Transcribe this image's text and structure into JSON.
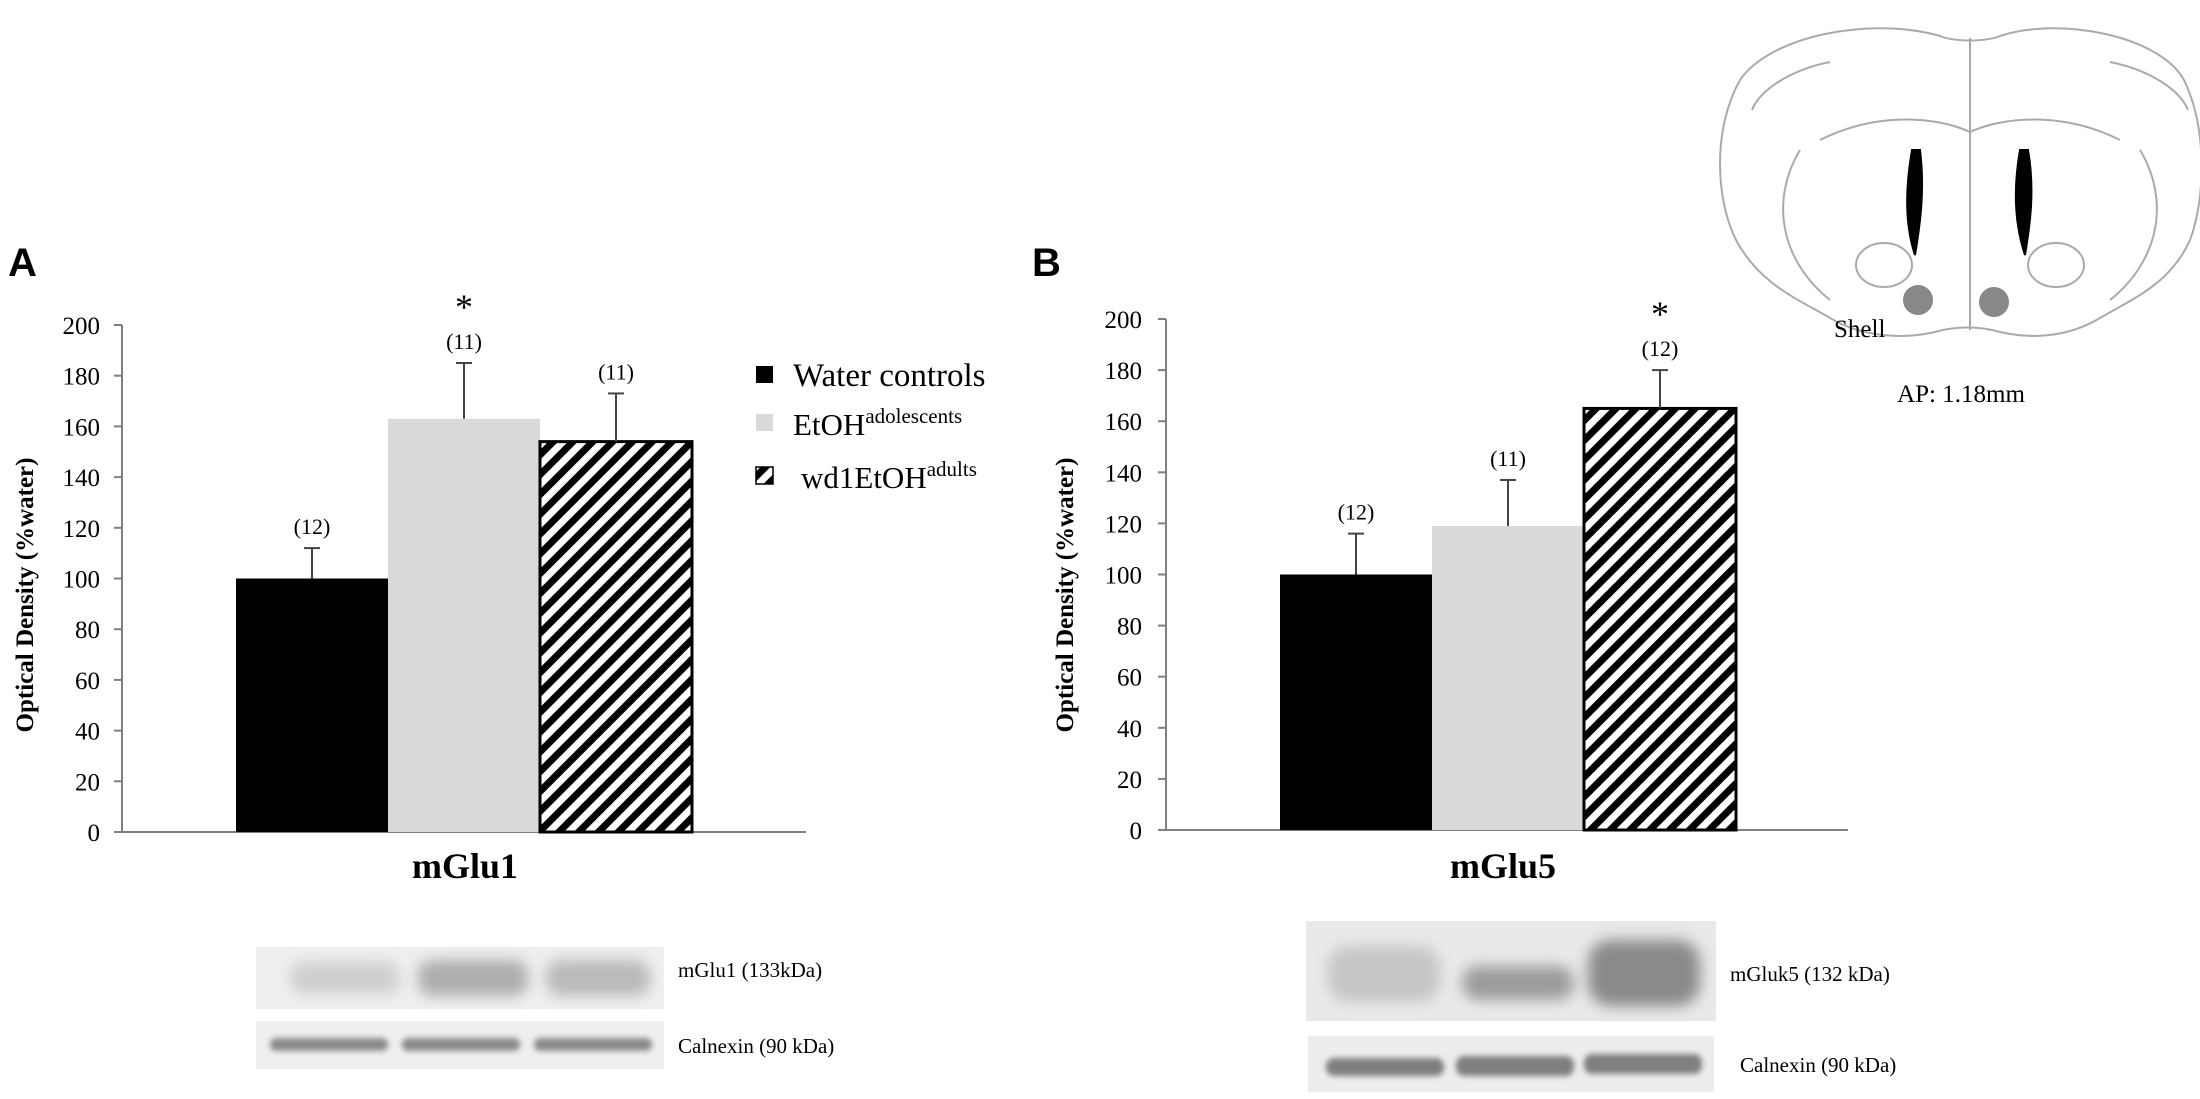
{
  "colors": {
    "water": "#000000",
    "etoh_adolescents": "#d9d9d9",
    "wd1etoh_adults": "hatched"
  },
  "legend": {
    "items": [
      {
        "name": "Water controls",
        "base": "Water controls",
        "sup": ""
      },
      {
        "name": "EtOHadolescents",
        "base": "EtOH",
        "sup": "adolescents"
      },
      {
        "name": "wd1EtOHadults",
        "base": "wd1EtOH",
        "sup": "adults"
      }
    ]
  },
  "chart_data": [
    {
      "type": "bar",
      "panel": "A",
      "xlabel": "mGlu1",
      "ylabel": "Optical Density (%water)",
      "ylim": [
        0,
        200
      ],
      "yticks": [
        "0",
        "20",
        "40",
        "60",
        "80",
        "100",
        "120",
        "140",
        "160",
        "180",
        "200"
      ],
      "series": [
        {
          "name": "Water controls",
          "value": 100,
          "error": 12,
          "n_label": "(12)",
          "sig": ""
        },
        {
          "name": "EtOHadolescents",
          "value": 163,
          "error": 22,
          "n_label": "(11)",
          "sig": "*"
        },
        {
          "name": "wd1EtOHadults",
          "value": 154,
          "error": 19,
          "n_label": "(11)",
          "sig": ""
        }
      ],
      "blot": {
        "labels": [
          "mGlu1 (133kDa)",
          "Calnexin (90 kDa)"
        ]
      }
    },
    {
      "type": "bar",
      "panel": "B",
      "xlabel": "mGlu5",
      "ylabel": "Optical Density (%water)",
      "ylim": [
        0,
        200
      ],
      "yticks": [
        "0",
        "20",
        "40",
        "60",
        "80",
        "100",
        "120",
        "140",
        "160",
        "180",
        "200"
      ],
      "series": [
        {
          "name": "Water controls",
          "value": 100,
          "error": 16,
          "n_label": "(12)",
          "sig": ""
        },
        {
          "name": "EtOHadolescents",
          "value": 119,
          "error": 18,
          "n_label": "(11)",
          "sig": ""
        },
        {
          "name": "wd1EtOHadults",
          "value": 165,
          "error": 15,
          "n_label": "(12)",
          "sig": "*"
        }
      ],
      "blot": {
        "labels": [
          "mGluk5 (132 kDa)",
          "Calnexin (90 kDa)"
        ]
      }
    }
  ],
  "brain": {
    "region_label": "Shell",
    "ap_label": "AP: 1.18mm"
  }
}
